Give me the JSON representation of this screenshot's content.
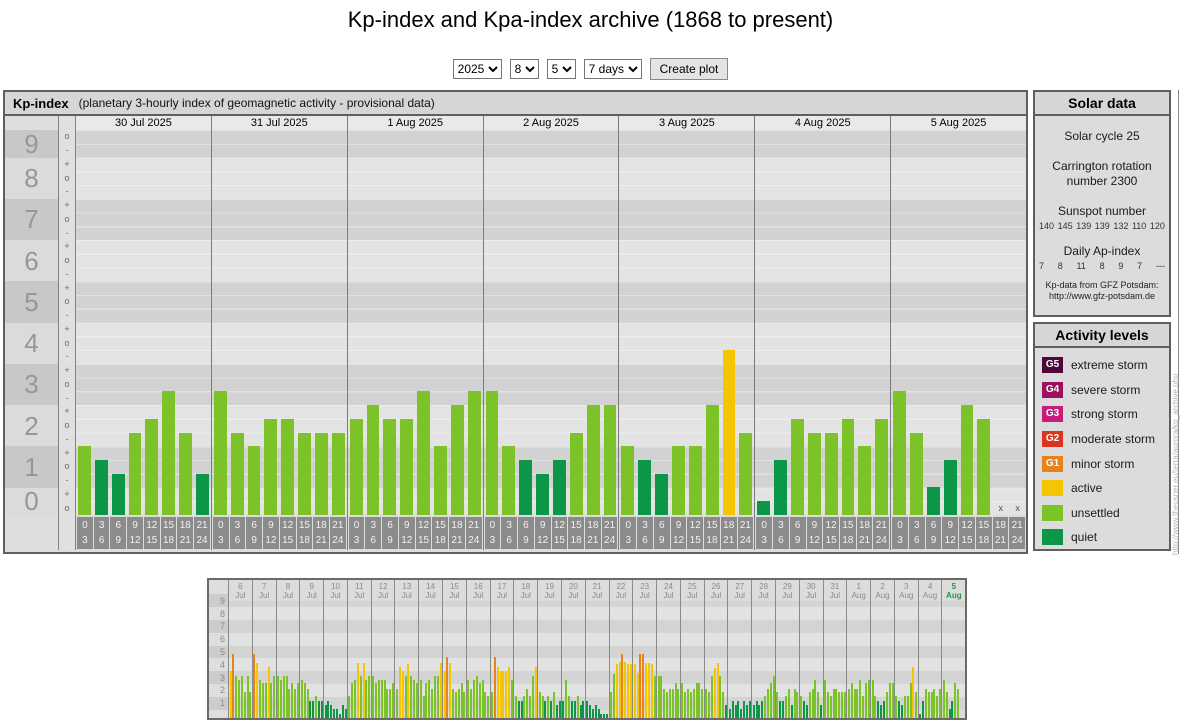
{
  "page_title": "Kp-index and Kpa-index archive (1868 to present)",
  "controls": {
    "year": "2025",
    "month": "8",
    "day": "5",
    "range": "7 days",
    "create_button": "Create plot"
  },
  "colors": {
    "g5": "#4c0839",
    "g4": "#9b115f",
    "g3": "#c61d7d",
    "g2": "#d93521",
    "g1": "#e8821c",
    "active": "#f5c402",
    "unsettled": "#7cc32a",
    "quiet": "#0c9748",
    "current_day_label": "#1f9a3f"
  },
  "kp_panel": {
    "title": "Kp-index",
    "subtitle": "(planetary 3-hourly index of geomagnetic activity - provisional data)",
    "missing_marker": "x",
    "y_numbers": [
      "9",
      "8",
      "7",
      "6",
      "5",
      "4",
      "3",
      "2",
      "1",
      "0"
    ],
    "sub_ticks_top": [
      "o",
      "-"
    ],
    "sub_ticks_mid": [
      "+",
      "o",
      "-"
    ],
    "sub_ticks_bottom": [
      "+",
      "o"
    ]
  },
  "chart_data": [
    {
      "type": "bar",
      "name": "kp-index-7day",
      "title": "Kp-index (planetary 3-hourly index of geomagnetic activity - provisional data)",
      "ylim": [
        0,
        9.33
      ],
      "interval_labels": [
        [
          "0",
          "3"
        ],
        [
          "3",
          "6"
        ],
        [
          "6",
          "9"
        ],
        [
          "9",
          "12"
        ],
        [
          "12",
          "15"
        ],
        [
          "15",
          "18"
        ],
        [
          "18",
          "21"
        ],
        [
          "21",
          "24"
        ]
      ],
      "categories": [
        "30 Jul 2025",
        "31 Jul 2025",
        "1 Aug 2025",
        "2 Aug 2025",
        "3 Aug 2025",
        "4 Aug 2025",
        "5 Aug 2025"
      ],
      "series": [
        {
          "label": "30 Jul 2025",
          "values": [
            1.67,
            1.33,
            1.0,
            2.0,
            2.33,
            3.0,
            2.0,
            1.0
          ]
        },
        {
          "label": "31 Jul 2025",
          "values": [
            3.0,
            2.0,
            1.67,
            2.33,
            2.33,
            2.0,
            2.0,
            2.0
          ]
        },
        {
          "label": "1 Aug 2025",
          "values": [
            2.33,
            2.67,
            2.33,
            2.33,
            3.0,
            1.67,
            2.67,
            3.0
          ]
        },
        {
          "label": "2 Aug 2025",
          "values": [
            3.0,
            1.67,
            1.33,
            1.0,
            1.33,
            2.0,
            2.67,
            2.67
          ]
        },
        {
          "label": "3 Aug 2025",
          "values": [
            1.67,
            1.33,
            1.0,
            1.67,
            1.67,
            2.67,
            4.0,
            2.0
          ]
        },
        {
          "label": "4 Aug 2025",
          "values": [
            0.33,
            1.33,
            2.33,
            2.0,
            2.0,
            2.33,
            1.67,
            2.33
          ]
        },
        {
          "label": "5 Aug 2025",
          "values": [
            3.0,
            2.0,
            0.67,
            1.33,
            2.67,
            2.33,
            null,
            null
          ]
        }
      ]
    },
    {
      "type": "bar",
      "name": "kp-index-31day-overview",
      "ylim": [
        0,
        9
      ],
      "yticks": [
        "9",
        "8",
        "7",
        "6",
        "5",
        "4",
        "3",
        "2",
        "1"
      ],
      "current_day": "5 Aug",
      "series": [
        {
          "label": "6 Jul",
          "values": [
            3.7,
            5.0,
            3.3,
            3.0,
            3.3,
            2.0,
            3.3,
            2.0
          ]
        },
        {
          "label": "7 Jul",
          "values": [
            5.0,
            4.3,
            3.0,
            2.7,
            2.7,
            4.0,
            2.7,
            3.3
          ]
        },
        {
          "label": "8 Jul",
          "values": [
            3.3,
            3.0,
            3.3,
            3.3,
            2.3,
            2.7,
            2.3,
            2.7
          ]
        },
        {
          "label": "9 Jul",
          "values": [
            3.0,
            2.7,
            2.3,
            1.3,
            1.3,
            1.7,
            1.3,
            1.3
          ]
        },
        {
          "label": "10 Jul",
          "values": [
            1.0,
            1.3,
            1.0,
            0.7,
            0.7,
            0.3,
            1.0,
            0.7
          ]
        },
        {
          "label": "11 Jul",
          "values": [
            1.7,
            2.7,
            3.0,
            4.3,
            3.3,
            4.3,
            3.0,
            3.3
          ]
        },
        {
          "label": "12 Jul",
          "values": [
            3.3,
            2.7,
            3.0,
            3.0,
            3.0,
            2.3,
            2.3,
            2.7
          ]
        },
        {
          "label": "13 Jul",
          "values": [
            2.3,
            4.0,
            3.7,
            3.3,
            4.2,
            3.3,
            3.0,
            2.7
          ]
        },
        {
          "label": "14 Jul",
          "values": [
            3.0,
            1.7,
            2.7,
            3.0,
            2.3,
            3.3,
            3.3,
            4.3
          ]
        },
        {
          "label": "15 Jul",
          "values": [
            3.7,
            4.8,
            4.3,
            2.3,
            2.0,
            2.3,
            2.7,
            2.0
          ]
        },
        {
          "label": "16 Jul",
          "values": [
            3.0,
            2.3,
            3.0,
            3.3,
            2.7,
            3.0,
            2.0,
            1.7
          ]
        },
        {
          "label": "17 Jul",
          "values": [
            2.0,
            4.8,
            4.0,
            3.7,
            3.7,
            3.7,
            4.0,
            3.0
          ]
        },
        {
          "label": "18 Jul",
          "values": [
            1.7,
            1.3,
            1.3,
            1.7,
            2.3,
            1.7,
            3.3,
            4.0
          ]
        },
        {
          "label": "19 Jul",
          "values": [
            2.0,
            1.7,
            1.3,
            1.7,
            1.3,
            2.0,
            1.0,
            1.3
          ]
        },
        {
          "label": "20 Jul",
          "values": [
            1.3,
            3.0,
            1.7,
            1.3,
            1.3,
            1.7,
            1.0,
            1.3
          ]
        },
        {
          "label": "21 Jul",
          "values": [
            1.3,
            1.0,
            0.7,
            1.0,
            0.7,
            0.3,
            0.3,
            0.3
          ]
        },
        {
          "label": "22 Jul",
          "values": [
            2.0,
            3.4,
            4.2,
            4.4,
            5.0,
            4.4,
            4.2,
            4.2
          ]
        },
        {
          "label": "23 Jul",
          "values": [
            4.2,
            3.5,
            5.0,
            5.0,
            4.3,
            4.3,
            4.2,
            3.3
          ]
        },
        {
          "label": "24 Jul",
          "values": [
            3.3,
            3.3,
            2.3,
            2.0,
            2.3,
            2.3,
            2.7,
            2.3
          ]
        },
        {
          "label": "25 Jul",
          "values": [
            2.7,
            2.0,
            2.3,
            2.0,
            2.3,
            2.7,
            2.7,
            2.3
          ]
        },
        {
          "label": "26 Jul",
          "values": [
            2.3,
            2.0,
            3.3,
            3.9,
            4.3,
            3.3,
            2.0,
            1.0
          ]
        },
        {
          "label": "27 Jul",
          "values": [
            0.7,
            1.3,
            1.0,
            1.3,
            0.7,
            1.3,
            1.0,
            1.3
          ]
        },
        {
          "label": "28 Jul",
          "values": [
            1.0,
            1.3,
            1.0,
            1.3,
            1.7,
            2.3,
            2.7,
            3.3
          ]
        },
        {
          "label": "29 Jul",
          "values": [
            2.0,
            1.3,
            1.3,
            1.7,
            2.3,
            1.0,
            2.3,
            2.0
          ]
        },
        {
          "label": "30 Jul",
          "values": [
            1.7,
            1.3,
            1.0,
            2.0,
            2.3,
            3.0,
            2.0,
            1.0
          ]
        },
        {
          "label": "31 Jul",
          "values": [
            3.0,
            2.0,
            1.7,
            2.3,
            2.3,
            2.0,
            2.0,
            2.0
          ]
        },
        {
          "label": "1 Aug",
          "values": [
            2.3,
            2.7,
            2.3,
            2.3,
            3.0,
            1.7,
            2.7,
            3.0
          ]
        },
        {
          "label": "2 Aug",
          "values": [
            3.0,
            1.7,
            1.3,
            1.0,
            1.3,
            2.0,
            2.7,
            2.7
          ]
        },
        {
          "label": "3 Aug",
          "values": [
            1.7,
            1.3,
            1.0,
            1.7,
            1.7,
            2.7,
            4.0,
            2.0
          ]
        },
        {
          "label": "4 Aug",
          "values": [
            0.3,
            1.3,
            2.3,
            2.0,
            2.0,
            2.3,
            1.7,
            2.3
          ]
        },
        {
          "label": "5 Aug",
          "values": [
            3.0,
            2.0,
            0.7,
            1.3,
            2.7,
            2.3,
            null,
            null
          ]
        }
      ]
    }
  ],
  "solar_data": {
    "title": "Solar data",
    "cycle_line": "Solar cycle 25",
    "carrington_line1": "Carrington rotation",
    "carrington_line2": "number 2300",
    "sunspot_title": "Sunspot number",
    "sunspot_values": [
      "140",
      "145",
      "139",
      "139",
      "132",
      "110",
      "120"
    ],
    "ap_title": "Daily Ap-index",
    "ap_values": [
      "7",
      "8",
      "11",
      "8",
      "9",
      "7",
      "---"
    ],
    "source_line1": "Kp-data from GFZ Potsdam:",
    "source_line2": "http://www.gfz-potsdam.de"
  },
  "activity_levels": {
    "title": "Activity levels",
    "items": [
      {
        "badge": "G5",
        "label": "extreme storm",
        "color_key": "g5"
      },
      {
        "badge": "G4",
        "label": "severe storm",
        "color_key": "g4"
      },
      {
        "badge": "G3",
        "label": "strong storm",
        "color_key": "g3"
      },
      {
        "badge": "G2",
        "label": "moderate storm",
        "color_key": "g2"
      },
      {
        "badge": "G1",
        "label": "minor storm",
        "color_key": "g1"
      },
      {
        "badge": "",
        "label": "active",
        "color_key": "active"
      },
      {
        "badge": "",
        "label": "unsettled",
        "color_key": "unsettled"
      },
      {
        "badge": "",
        "label": "quiet",
        "color_key": "quiet"
      }
    ]
  },
  "watermark": "http://www.theusner.eu/terra/aurora/kp_archive.php"
}
